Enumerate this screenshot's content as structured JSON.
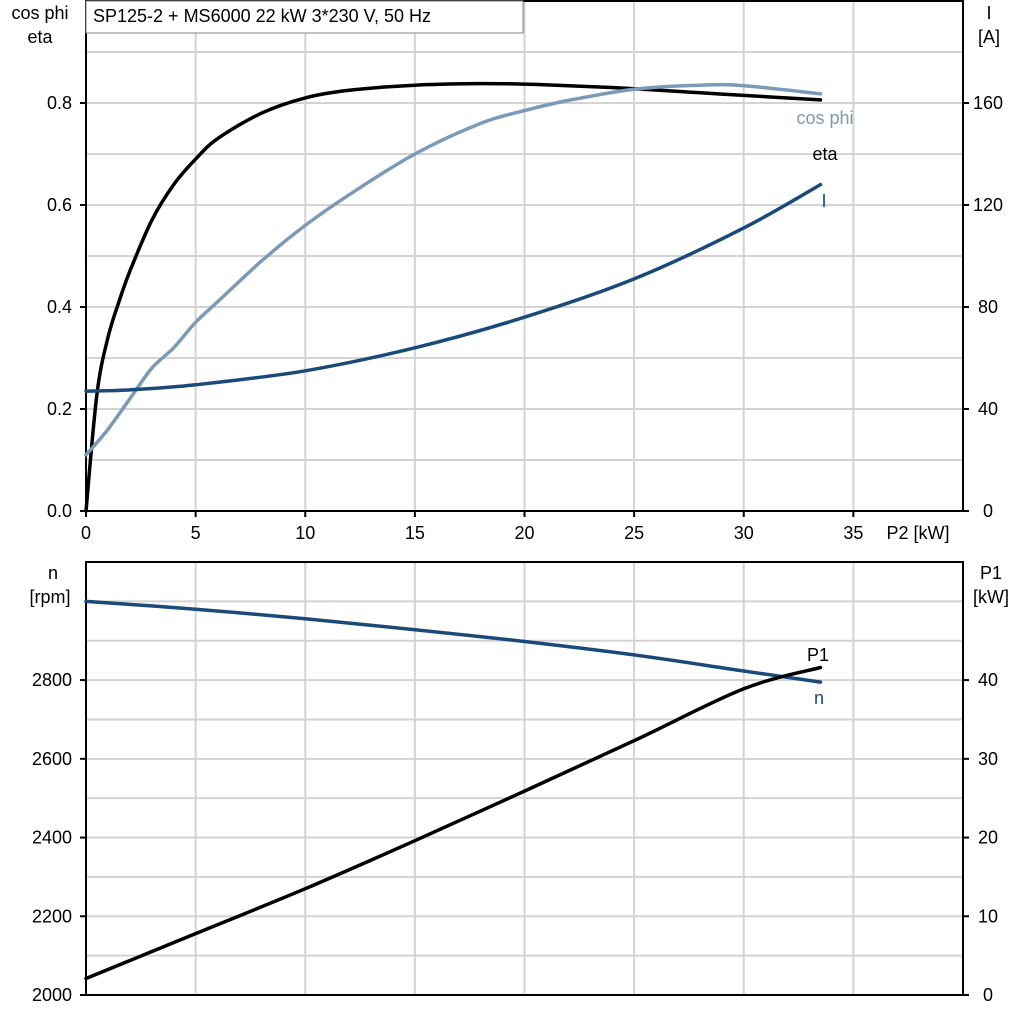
{
  "title": "SP125-2 + MS6000   22 kW   3*230 V, 50 Hz",
  "colors": {
    "eta": "#000000",
    "cosphi": "#7a9ab8",
    "current": "#1a4a7a",
    "speed": "#1a4a7a",
    "p1": "#000000",
    "grid": "#d3d3d3"
  },
  "chart_data": [
    {
      "type": "line",
      "xlabel": "P2 [kW]",
      "xlim": [
        0,
        40
      ],
      "xticks": [
        "0",
        "5",
        "10",
        "15",
        "20",
        "25",
        "30",
        "35"
      ],
      "ylabel_left": [
        "cos phi",
        "eta"
      ],
      "ylim_left": [
        0,
        1.0
      ],
      "yticks_left": [
        "0.0",
        "0.2",
        "0.4",
        "0.6",
        "0.8"
      ],
      "ylabel_right": [
        "I",
        "[A]"
      ],
      "ylim_right": [
        0,
        200
      ],
      "yticks_right": [
        "0",
        "40",
        "80",
        "120",
        "160"
      ],
      "grid": true,
      "series": [
        {
          "name": "eta",
          "axis": "left",
          "key": "eta",
          "x": [
            0,
            0.5,
            1,
            1.5,
            2,
            3,
            4,
            5,
            6,
            8,
            10,
            12,
            15,
            18,
            20,
            22,
            25,
            28,
            30,
            33.5
          ],
          "y": [
            0.0,
            0.23,
            0.34,
            0.41,
            0.47,
            0.57,
            0.64,
            0.69,
            0.73,
            0.78,
            0.81,
            0.825,
            0.835,
            0.838,
            0.837,
            0.834,
            0.828,
            0.82,
            0.815,
            0.806
          ]
        },
        {
          "name": "cos phi",
          "axis": "left",
          "key": "cosphi",
          "x": [
            0,
            1,
            2,
            3,
            4,
            5,
            6,
            8,
            10,
            12,
            15,
            18,
            20,
            22,
            25,
            28,
            30,
            33.5
          ],
          "y": [
            0.11,
            0.16,
            0.22,
            0.28,
            0.32,
            0.37,
            0.41,
            0.49,
            0.56,
            0.62,
            0.7,
            0.76,
            0.785,
            0.805,
            0.827,
            0.835,
            0.834,
            0.818
          ]
        },
        {
          "name": "I",
          "axis": "right",
          "key": "current",
          "x": [
            0,
            2,
            5,
            10,
            15,
            20,
            25,
            30,
            33.5
          ],
          "y": [
            47,
            47.5,
            49.5,
            55,
            64,
            76,
            91,
            111,
            128
          ]
        }
      ]
    },
    {
      "type": "line",
      "xlim": [
        0,
        40
      ],
      "ylabel_left": [
        "n",
        "[rpm]"
      ],
      "ylim_left": [
        2000,
        3100
      ],
      "yticks_left": [
        "2000",
        "2200",
        "2400",
        "2600",
        "2800"
      ],
      "ylabel_right": [
        "P1",
        "[kW]"
      ],
      "ylim_right": [
        0,
        55
      ],
      "yticks_right": [
        "0",
        "10",
        "20",
        "30",
        "40"
      ],
      "grid": true,
      "series": [
        {
          "name": "n",
          "axis": "left",
          "key": "speed",
          "x": [
            0,
            5,
            10,
            15,
            20,
            25,
            30,
            33.5
          ],
          "y": [
            3000,
            2980,
            2956,
            2928,
            2898,
            2864,
            2823,
            2795
          ]
        },
        {
          "name": "P1",
          "axis": "right",
          "key": "p1",
          "x": [
            0,
            5,
            10,
            15,
            20,
            25,
            30,
            33.5
          ],
          "y": [
            2.1,
            7.8,
            13.5,
            19.6,
            25.9,
            32.3,
            38.9,
            41.6
          ]
        }
      ]
    }
  ]
}
